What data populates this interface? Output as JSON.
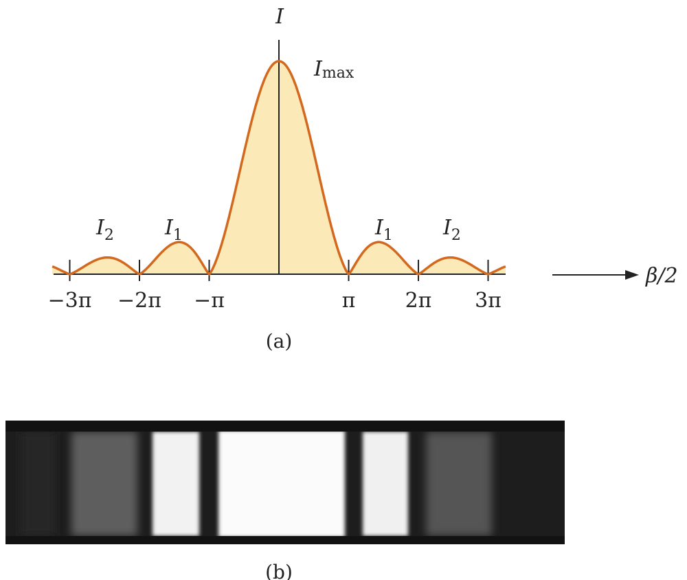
{
  "panel_a": {
    "y_axis_label": "I",
    "peak_label": {
      "symbol": "I",
      "subscript": "max"
    },
    "secondary_max_labels": [
      {
        "symbol": "I",
        "subscript": "2",
        "side": "left"
      },
      {
        "symbol": "I",
        "subscript": "1",
        "side": "left"
      },
      {
        "symbol": "I",
        "subscript": "1",
        "side": "right"
      },
      {
        "symbol": "I",
        "subscript": "2",
        "side": "right"
      }
    ],
    "x_axis_label": "β/2",
    "x_ticks": [
      {
        "value": -3,
        "label": "−3π"
      },
      {
        "value": -2,
        "label": "−2π"
      },
      {
        "value": -1,
        "label": "−π"
      },
      {
        "value": 1,
        "label": "π"
      },
      {
        "value": 2,
        "label": "2π"
      },
      {
        "value": 3,
        "label": "3π"
      }
    ],
    "x_range_pi": [
      -3.25,
      3.25
    ],
    "curve": "sinc-squared (single-slit diffraction intensity)",
    "caption": "(a)",
    "colors": {
      "curve": "#d2691e",
      "fill": "#fce9b8",
      "axis": "#222222"
    }
  },
  "panel_b": {
    "caption": "(b)",
    "description": "diffraction fringe photograph"
  }
}
